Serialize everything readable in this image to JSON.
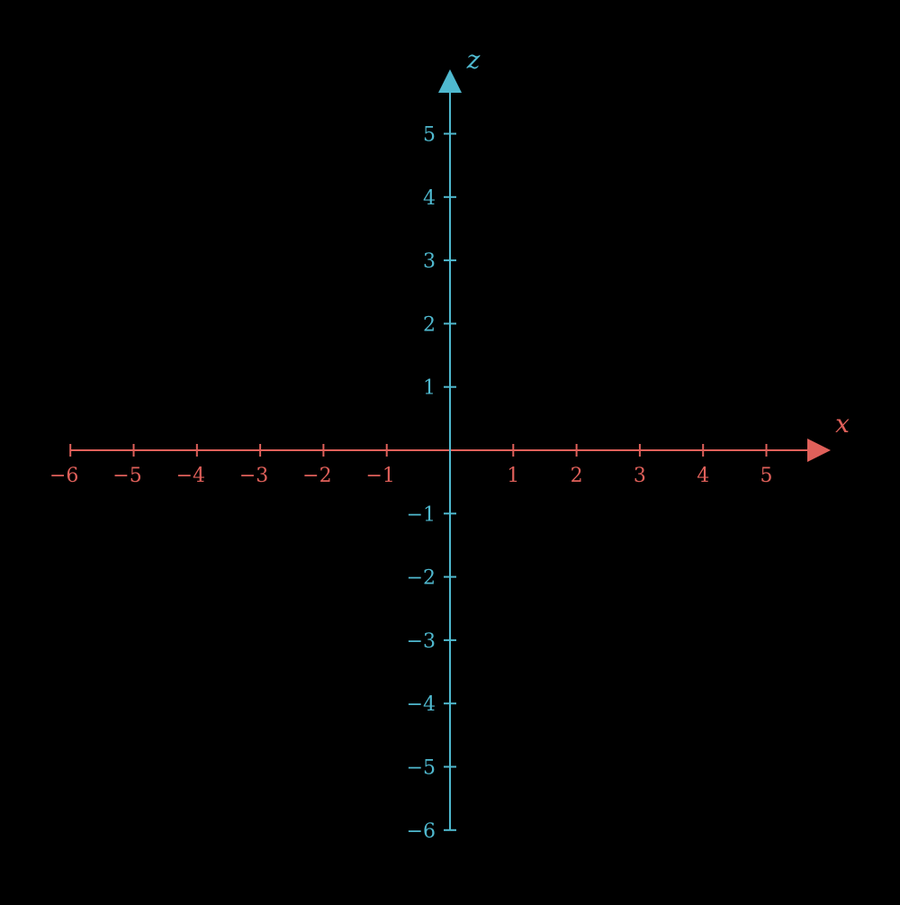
{
  "chart_data": {
    "type": "axes",
    "x_axis": {
      "label": "x",
      "color": "#e0605a",
      "range": [
        -6,
        6
      ],
      "ticks": [
        -6,
        -5,
        -4,
        -3,
        -2,
        -1,
        1,
        2,
        3,
        4,
        5
      ],
      "tick_labels": [
        "−6",
        "−5",
        "−4",
        "−3",
        "−2",
        "−1",
        "1",
        "2",
        "3",
        "4",
        "5"
      ]
    },
    "z_axis": {
      "label": "z",
      "color": "#4fb9cf",
      "range": [
        -6,
        6
      ],
      "ticks": [
        5,
        4,
        3,
        2,
        1,
        -1,
        -2,
        -3,
        -4,
        -5,
        -6
      ],
      "tick_labels": [
        "5",
        "4",
        "3",
        "2",
        "1",
        "−1",
        "−2",
        "−3",
        "−4",
        "−5",
        "−6"
      ]
    },
    "background": "#000000",
    "grid": false
  }
}
